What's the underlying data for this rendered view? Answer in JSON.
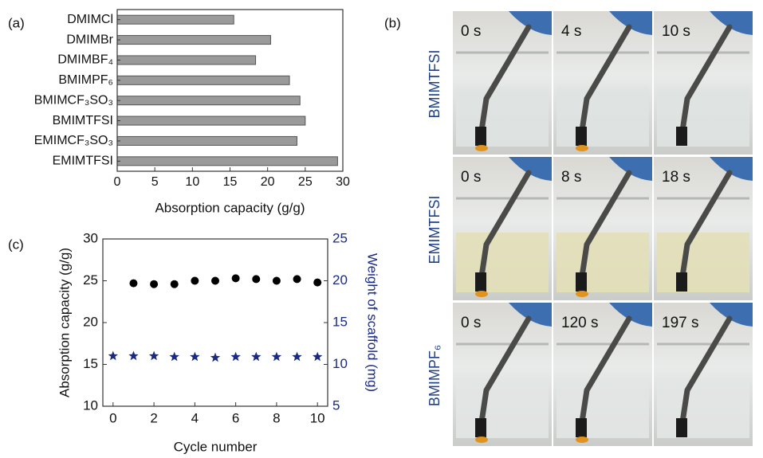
{
  "chart_data": [
    {
      "type": "bar",
      "orientation": "horizontal",
      "panel_label": "(a)",
      "categories": [
        "DMIMCl",
        "DMIMBr",
        "DMIMBF₄",
        "BMIMPF₆",
        "BMIMCF₃SO₃",
        "BMIMTFSI",
        "EMIMCF₃SO₃",
        "EMIMTFSI"
      ],
      "values": [
        15.5,
        20.4,
        18.4,
        22.9,
        24.3,
        25.0,
        23.9,
        29.3
      ],
      "color": "#9a9a9a",
      "xlim": [
        0,
        30
      ],
      "xticks": [
        0,
        5,
        10,
        15,
        20,
        25,
        30
      ],
      "xlabel": "Absorption capacity (g/g)"
    },
    {
      "type": "scatter",
      "panel_label": "(c)",
      "xlim": [
        -0.5,
        10.5
      ],
      "xticks": [
        0,
        2,
        4,
        6,
        8,
        10
      ],
      "xlabel": "Cycle number",
      "ylim": [
        10,
        30
      ],
      "yticks": [
        10,
        15,
        20,
        25,
        30
      ],
      "ylabel": "Absorption capacity (g/g)",
      "y2lim": [
        5,
        25
      ],
      "y2ticks": [
        5,
        10,
        15,
        20,
        25
      ],
      "y2label": "Weight of scaffold (mg)",
      "series": [
        {
          "marker": "circle",
          "color": "#000000",
          "x": [
            1,
            2,
            3,
            4,
            5,
            6,
            7,
            8,
            9,
            10
          ],
          "values": [
            24.7,
            24.6,
            24.6,
            25.0,
            25.0,
            25.3,
            25.2,
            25.0,
            25.2,
            24.8
          ]
        },
        {
          "marker": "star",
          "color": "#1a2a80",
          "axis": "y2",
          "x": [
            0,
            1,
            2,
            3,
            4,
            5,
            6,
            7,
            8,
            9,
            10
          ],
          "values": [
            11.0,
            11.0,
            11.0,
            10.9,
            10.9,
            10.8,
            10.9,
            10.9,
            10.9,
            10.9,
            10.9
          ]
        }
      ]
    }
  ],
  "panel_b": {
    "panel_label": "(b)",
    "rows": [
      {
        "label": "BMIMTFSI",
        "times": [
          "0 s",
          "4 s",
          "10 s"
        ]
      },
      {
        "label": "EMIMTFSI",
        "times": [
          "0 s",
          "8 s",
          "18 s"
        ]
      },
      {
        "label": "BMIMPF₆",
        "times": [
          "0 s",
          "120 s",
          "197 s"
        ]
      }
    ]
  }
}
